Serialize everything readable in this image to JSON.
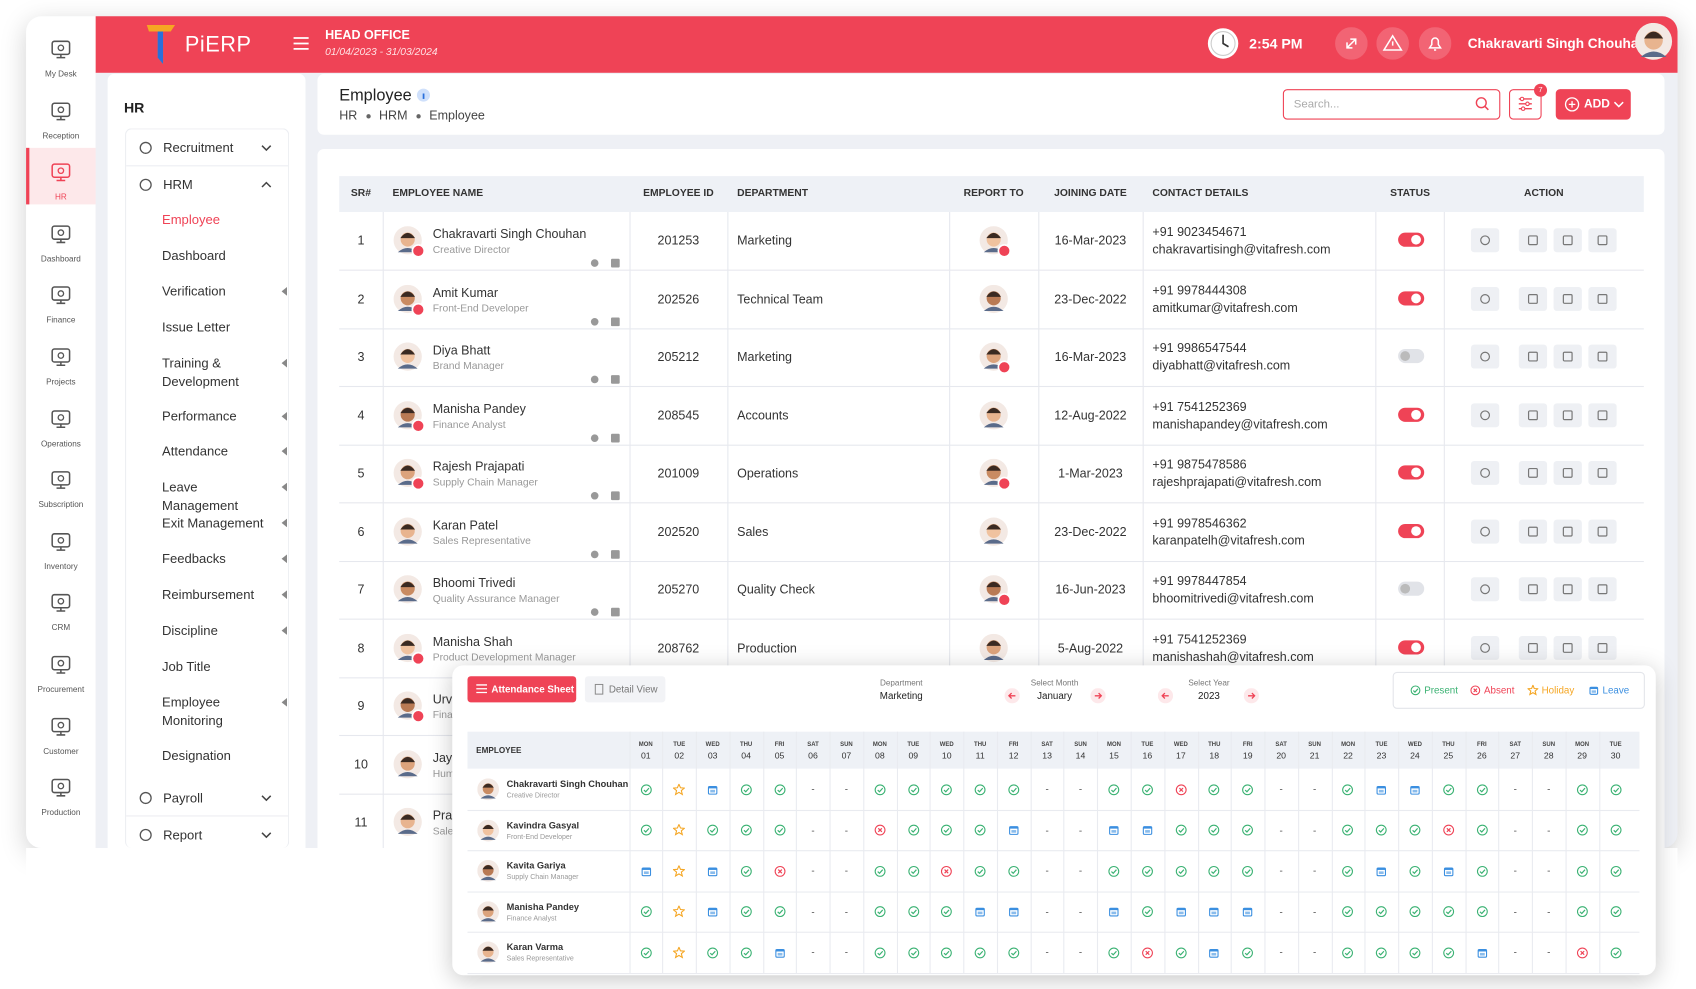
{
  "header": {
    "logo": "PiERP",
    "office": "HEAD OFFICE",
    "period": "01/04/2023 - 31/03/2024",
    "time": "2:54 PM",
    "user": "Chakravarti Singh Chouhan"
  },
  "rail": [
    {
      "label": "My Desk"
    },
    {
      "label": "Reception"
    },
    {
      "label": "HR",
      "active": true
    },
    {
      "label": "Dashboard"
    },
    {
      "label": "Finance"
    },
    {
      "label": "Projects"
    },
    {
      "label": "Operations"
    },
    {
      "label": "Subscription"
    },
    {
      "label": "Inventory"
    },
    {
      "label": "CRM"
    },
    {
      "label": "Procurement"
    },
    {
      "label": "Customer"
    },
    {
      "label": "Production"
    }
  ],
  "menu": {
    "title": "HR",
    "groups": [
      {
        "label": "Recruitment"
      },
      {
        "label": "HRM",
        "open": true,
        "items": [
          {
            "label": "Employee",
            "active": true
          },
          {
            "label": "Dashboard"
          },
          {
            "label": "Verification",
            "arrow": true
          },
          {
            "label": "Issue Letter"
          },
          {
            "label": "Training & Development",
            "arrow": true
          },
          {
            "label": "Performance",
            "arrow": true
          },
          {
            "label": "Attendance",
            "arrow": true
          },
          {
            "label": "Leave Management",
            "arrow": true
          },
          {
            "label": "Exit Management",
            "arrow": true
          },
          {
            "label": "Feedbacks",
            "arrow": true
          },
          {
            "label": "Reimbursement",
            "arrow": true
          },
          {
            "label": "Discipline",
            "arrow": true
          },
          {
            "label": "Job Title"
          },
          {
            "label": "Employee Monitoring",
            "arrow": true
          },
          {
            "label": "Designation"
          }
        ]
      },
      {
        "label": "Payroll"
      },
      {
        "label": "Report"
      }
    ]
  },
  "page": {
    "title": "Employee",
    "breadcrumb": [
      "HR",
      "HRM",
      "Employee"
    ],
    "search": "Search...",
    "filter_count": 7,
    "add": "ADD"
  },
  "table": {
    "columns": [
      "SR#",
      "EMPLOYEE NAME",
      "EMPLOYEE ID",
      "DEPARTMENT",
      "REPORT TO",
      "JOINING DATE",
      "CONTACT DETAILS",
      "STATUS",
      "ACTION"
    ],
    "rows": [
      {
        "sr": 1,
        "name": "Chakravarti Singh Chouhan",
        "role": "Creative Director",
        "id": 201253,
        "department": "Marketing",
        "joining": "16-Mar-2023",
        "phone": "+91 9023454671",
        "email": "chakravartisingh@vitafresh.com",
        "active": true
      },
      {
        "sr": 2,
        "name": "Amit Kumar",
        "role": "Front-End Developer",
        "id": 202526,
        "department": "Technical Team",
        "joining": "23-Dec-2022",
        "phone": "+91 9978444308",
        "email": "amitkumar@vitafresh.com",
        "active": true
      },
      {
        "sr": 3,
        "name": "Diya Bhatt",
        "role": "Brand Manager",
        "id": 205212,
        "department": "Marketing",
        "joining": "16-Mar-2023",
        "phone": "+91 9986547544",
        "email": "diyabhatt@vitafresh.com",
        "active": false
      },
      {
        "sr": 4,
        "name": "Manisha Pandey",
        "role": "Finance Analyst",
        "id": 208545,
        "department": "Accounts",
        "joining": "12-Aug-2022",
        "phone": "+91 7541252369",
        "email": "manishapandey@vitafresh.com",
        "active": true
      },
      {
        "sr": 5,
        "name": "Rajesh Prajapati",
        "role": "Supply Chain Manager",
        "id": 201009,
        "department": "Operations",
        "joining": "1-Mar-2023",
        "phone": "+91 9875478586",
        "email": "rajeshprajapati@vitafresh.com",
        "active": true
      },
      {
        "sr": 6,
        "name": "Karan Patel",
        "role": "Sales Representative",
        "id": 202520,
        "department": "Sales",
        "joining": "23-Dec-2022",
        "phone": "+91 9978546362",
        "email": "karanpatelh@vitafresh.com",
        "active": true
      },
      {
        "sr": 7,
        "name": "Bhoomi Trivedi",
        "role": "Quality Assurance Manager",
        "id": 205270,
        "department": "Quality Check",
        "joining": "16-Jun-2023",
        "phone": "+91 9978447854",
        "email": "bhoomitrivedi@vitafresh.com",
        "active": false
      },
      {
        "sr": 8,
        "name": "Manisha Shah",
        "role": "Product Development Manager",
        "id": 208762,
        "department": "Production",
        "joining": "5-Aug-2022",
        "phone": "+91 7541252369",
        "email": "manishashah@vitafresh.com",
        "active": true
      },
      {
        "sr": 9,
        "name": "Urv",
        "role": "Fina"
      },
      {
        "sr": 10,
        "name": "Jay",
        "role": "Hum"
      },
      {
        "sr": 11,
        "name": "Pra",
        "role": "Sale"
      }
    ]
  },
  "attendance": {
    "tabs": [
      "Attendance Sheet",
      "Detail View"
    ],
    "department_label": "Department",
    "department": "Marketing",
    "month_label": "Select Month",
    "month": "January",
    "year_label": "Select Year",
    "year": "2023",
    "legend": [
      {
        "label": "Present",
        "status": "P"
      },
      {
        "label": "Absent",
        "status": "A"
      },
      {
        "label": "Holiday",
        "status": "H"
      },
      {
        "label": "Leave",
        "status": "L"
      }
    ],
    "employee_header": "EMPLOYEE",
    "days": [
      [
        "MON",
        "01"
      ],
      [
        "TUE",
        "02"
      ],
      [
        "WED",
        "03"
      ],
      [
        "THU",
        "04"
      ],
      [
        "FRI",
        "05"
      ],
      [
        "SAT",
        "06"
      ],
      [
        "SUN",
        "07"
      ],
      [
        "MON",
        "08"
      ],
      [
        "TUE",
        "09"
      ],
      [
        "WED",
        "10"
      ],
      [
        "THU",
        "11"
      ],
      [
        "FRI",
        "12"
      ],
      [
        "SAT",
        "13"
      ],
      [
        "SUN",
        "14"
      ],
      [
        "MON",
        "15"
      ],
      [
        "TUE",
        "16"
      ],
      [
        "WED",
        "17"
      ],
      [
        "THU",
        "18"
      ],
      [
        "FRI",
        "19"
      ],
      [
        "SAT",
        "20"
      ],
      [
        "SUN",
        "21"
      ],
      [
        "MON",
        "22"
      ],
      [
        "TUE",
        "23"
      ],
      [
        "WED",
        "24"
      ],
      [
        "THU",
        "25"
      ],
      [
        "FRI",
        "26"
      ],
      [
        "SAT",
        "27"
      ],
      [
        "SUN",
        "28"
      ],
      [
        "MON",
        "29"
      ],
      [
        "TUE",
        "30"
      ]
    ],
    "rows": [
      {
        "name": "Chakravarti Singh Chouhan",
        "role": "Creative Director",
        "status": [
          "P",
          "H",
          "L",
          "P",
          "P",
          "-",
          "-",
          "P",
          "P",
          "P",
          "P",
          "P",
          "-",
          "-",
          "P",
          "P",
          "A",
          "P",
          "P",
          "-",
          "-",
          "P",
          "L",
          "L",
          "P",
          "P",
          "-",
          "-",
          "P",
          "P"
        ]
      },
      {
        "name": "Kavindra Gasyal",
        "role": "Front-End Developer",
        "status": [
          "P",
          "H",
          "P",
          "P",
          "P",
          "-",
          "-",
          "A",
          "P",
          "P",
          "P",
          "L",
          "-",
          "-",
          "L",
          "L",
          "P",
          "P",
          "P",
          "-",
          "-",
          "P",
          "P",
          "P",
          "A",
          "P",
          "-",
          "-",
          "P",
          "P"
        ]
      },
      {
        "name": "Kavita Gariya",
        "role": "Supply Chain Manager",
        "status": [
          "L",
          "H",
          "L",
          "P",
          "A",
          "-",
          "-",
          "P",
          "P",
          "A",
          "P",
          "P",
          "-",
          "-",
          "P",
          "P",
          "P",
          "P",
          "P",
          "-",
          "-",
          "P",
          "L",
          "P",
          "L",
          "P",
          "-",
          "-",
          "P",
          "P"
        ]
      },
      {
        "name": "Manisha Pandey",
        "role": "Finance Analyst",
        "status": [
          "P",
          "H",
          "L",
          "P",
          "P",
          "-",
          "-",
          "P",
          "P",
          "P",
          "L",
          "L",
          "-",
          "-",
          "L",
          "P",
          "L",
          "L",
          "L",
          "-",
          "-",
          "P",
          "P",
          "P",
          "P",
          "P",
          "-",
          "-",
          "P",
          "P"
        ]
      },
      {
        "name": "Karan Varma",
        "role": "Sales Representative",
        "status": [
          "P",
          "H",
          "P",
          "P",
          "L",
          "-",
          "-",
          "P",
          "P",
          "P",
          "P",
          "P",
          "-",
          "-",
          "P",
          "A",
          "P",
          "L",
          "P",
          "-",
          "-",
          "P",
          "P",
          "P",
          "P",
          "L",
          "-",
          "-",
          "A",
          "P"
        ]
      }
    ]
  }
}
